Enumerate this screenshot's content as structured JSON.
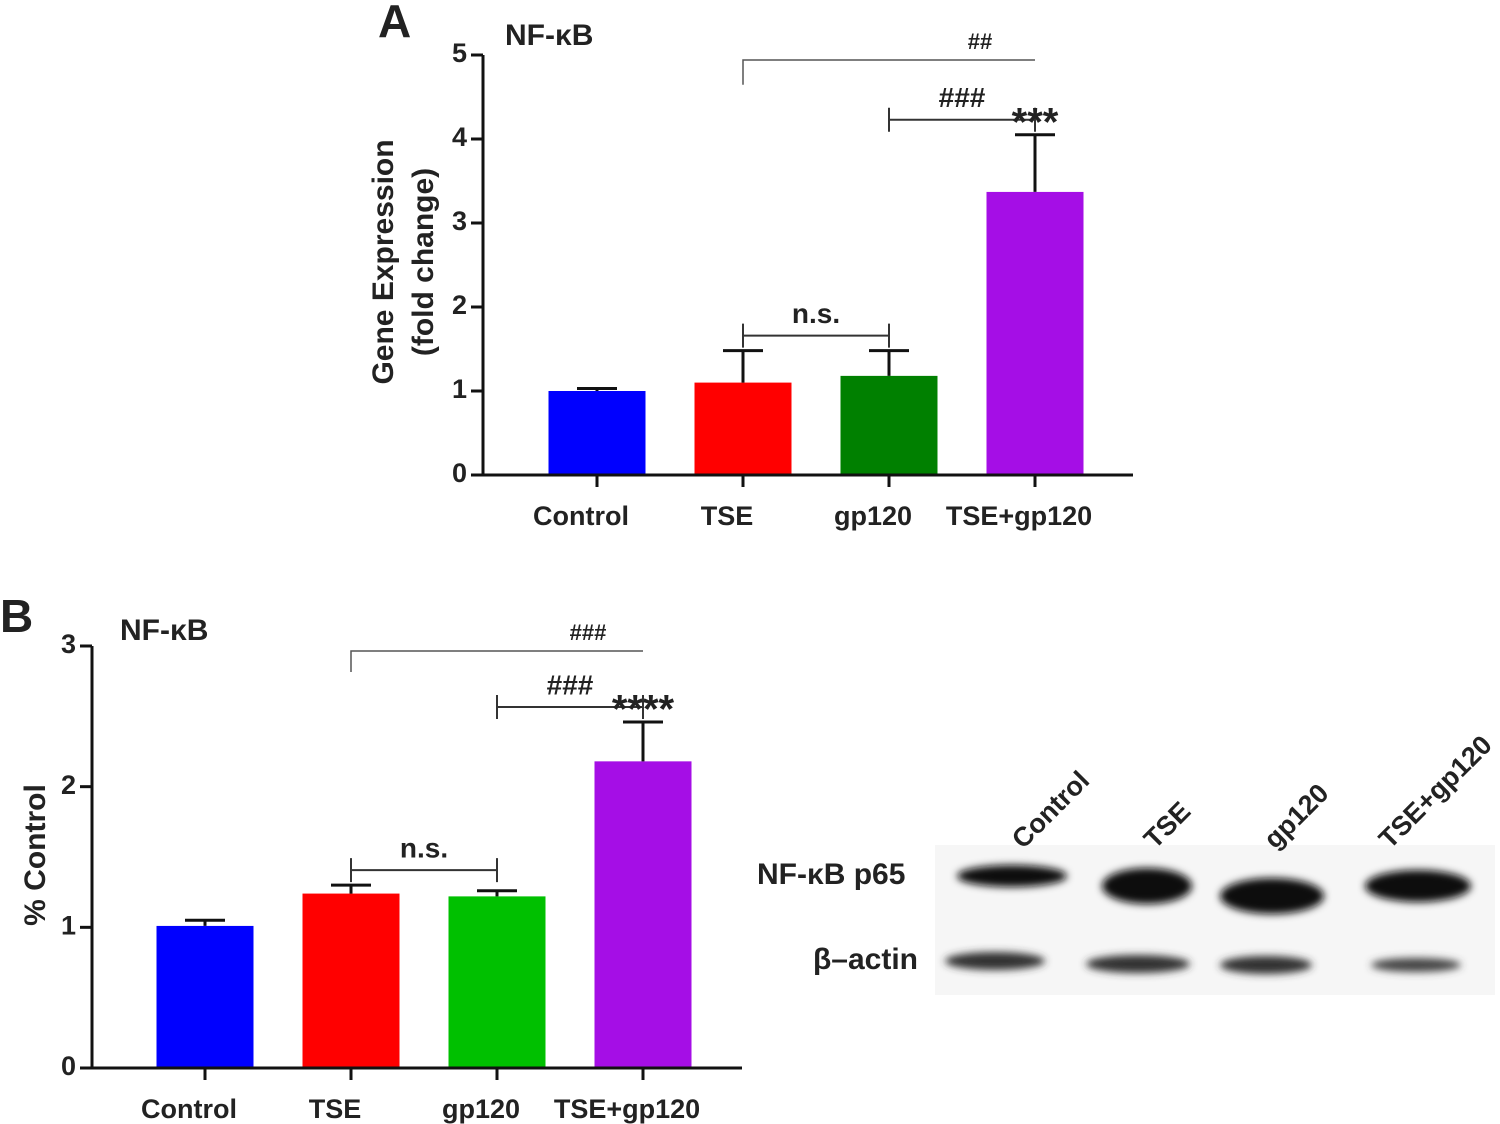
{
  "chart_data": [
    {
      "type": "bar",
      "panel": "A",
      "title": "NF-κB",
      "y_label": [
        "Gene Expression",
        "(fold change)"
      ],
      "categories": [
        "Control",
        "TSE",
        "gp120",
        "TSE+gp120"
      ],
      "values": [
        1.0,
        1.1,
        1.18,
        3.37
      ],
      "errors": [
        0.03,
        0.38,
        0.3,
        0.68
      ],
      "colors": [
        "#0000ff",
        "#ff0000",
        "#008000",
        "#a50ee6"
      ],
      "ylim": [
        0,
        5
      ],
      "yticks": [
        0,
        1,
        2,
        3,
        4,
        5
      ],
      "annotations": [
        {
          "text": "n.s.",
          "from": 1,
          "to": 2
        },
        {
          "text": "###",
          "from": 2,
          "to": 3
        },
        {
          "text": "##",
          "from": 1,
          "to": 3
        },
        {
          "text": "***",
          "at": 3
        }
      ]
    },
    {
      "type": "bar",
      "panel": "B",
      "title": "NF-κB",
      "y_label": [
        "% Control"
      ],
      "categories": [
        "Control",
        "TSE",
        "gp120",
        "TSE+gp120"
      ],
      "values": [
        1.01,
        1.24,
        1.22,
        2.18
      ],
      "errors": [
        0.04,
        0.06,
        0.04,
        0.28
      ],
      "colors": [
        "#0000ff",
        "#ff0000",
        "#00c000",
        "#a50ee6"
      ],
      "ylim": [
        0,
        3
      ],
      "yticks": [
        0,
        1,
        2,
        3
      ],
      "annotations": [
        {
          "text": "n.s.",
          "from": 1,
          "to": 2
        },
        {
          "text": "###",
          "from": 2,
          "to": 3
        },
        {
          "text": "###",
          "from": 1,
          "to": 3
        },
        {
          "text": "****",
          "at": 3
        }
      ]
    }
  ],
  "blot": {
    "lanes": [
      "Control",
      "TSE",
      "gp120",
      "TSE+gp120"
    ],
    "rows": [
      "NF-κB p65",
      "β–actin"
    ]
  }
}
